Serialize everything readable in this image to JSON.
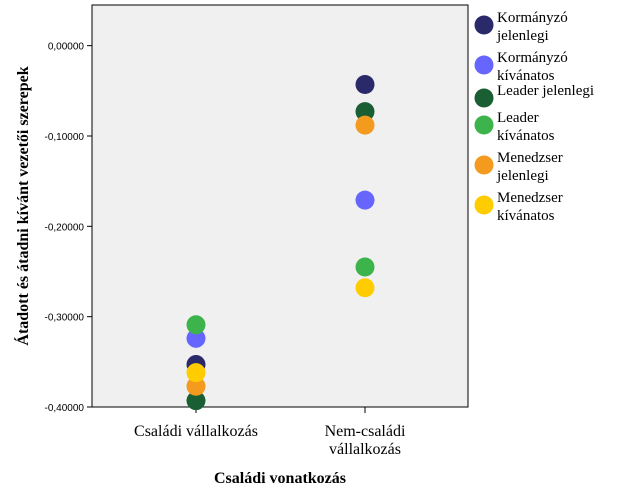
{
  "chart_data": {
    "type": "scatter",
    "xlabel": "Családi vonatkozás",
    "ylabel": "Átadott és átadni kívánt vezetői szerepek",
    "categories": [
      [
        "Családi vállalkozás"
      ],
      [
        "Nem-családi",
        "vállalkozás"
      ]
    ],
    "yticks": [
      "0,00000",
      "-0,10000",
      "-0,20000",
      "-0,30000",
      "-0,40000"
    ],
    "ylim": [
      -0.4,
      0.045
    ],
    "legend_position": "right",
    "grid": false,
    "series": [
      {
        "name": [
          "Kormányzó",
          "jelenlegi"
        ],
        "color": "#2a2a6b",
        "values": [
          -0.353,
          -0.043
        ]
      },
      {
        "name": [
          "Kormányzó",
          "kívánatos"
        ],
        "color": "#6666ff",
        "values": [
          -0.324,
          -0.171
        ]
      },
      {
        "name": [
          "Leader jelenlegi"
        ],
        "color": "#1a5e33",
        "values": [
          -0.393,
          -0.073
        ]
      },
      {
        "name": [
          "Leader",
          "kívánatos"
        ],
        "color": "#3cb44b",
        "values": [
          -0.309,
          -0.245
        ]
      },
      {
        "name": [
          "Menedzser",
          "jelenlegi"
        ],
        "color": "#f39a1f",
        "values": [
          -0.377,
          -0.088
        ]
      },
      {
        "name": [
          "Menedzser",
          "kívánatos"
        ],
        "color": "#ffcc00",
        "values": [
          -0.362,
          -0.268
        ]
      }
    ]
  }
}
